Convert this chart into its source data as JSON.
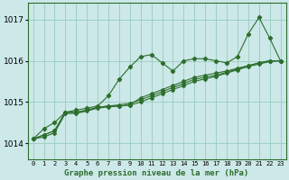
{
  "title": "Graphe pression niveau de la mer (hPa)",
  "background_color": "#cce8e8",
  "grid_color": "#99ccbb",
  "line_color": "#2d6e2d",
  "x_labels": [
    "0",
    "1",
    "2",
    "3",
    "4",
    "5",
    "6",
    "7",
    "8",
    "9",
    "10",
    "11",
    "12",
    "13",
    "14",
    "15",
    "16",
    "17",
    "18",
    "19",
    "20",
    "21",
    "22",
    "23"
  ],
  "ylim": [
    1013.6,
    1017.4
  ],
  "yticks": [
    1014,
    1015,
    1016,
    1017
  ],
  "series": [
    [
      1014.1,
      1014.35,
      1014.5,
      1014.75,
      1014.8,
      1014.85,
      1014.9,
      1015.15,
      1015.55,
      1015.85,
      1016.1,
      1016.15,
      1015.95,
      1015.75,
      1016.0,
      1016.05,
      1016.05,
      1016.0,
      1015.95,
      1016.1,
      1016.65,
      1017.05,
      1016.55,
      1016.0
    ],
    [
      1014.1,
      1014.2,
      1014.3,
      1014.75,
      1014.75,
      1014.8,
      1014.87,
      1014.9,
      1014.9,
      1014.93,
      1015.1,
      1015.2,
      1015.3,
      1015.4,
      1015.5,
      1015.6,
      1015.65,
      1015.7,
      1015.75,
      1015.82,
      1015.88,
      1015.95,
      1016.0,
      1016.0
    ],
    [
      1014.1,
      1014.2,
      1014.3,
      1014.75,
      1014.75,
      1014.8,
      1014.87,
      1014.9,
      1014.93,
      1014.97,
      1015.05,
      1015.15,
      1015.25,
      1015.35,
      1015.45,
      1015.55,
      1015.6,
      1015.65,
      1015.72,
      1015.8,
      1015.88,
      1015.95,
      1016.0,
      1016.0
    ],
    [
      1014.1,
      1014.15,
      1014.25,
      1014.72,
      1014.72,
      1014.78,
      1014.85,
      1014.88,
      1014.9,
      1014.92,
      1015.0,
      1015.1,
      1015.2,
      1015.3,
      1015.4,
      1015.5,
      1015.56,
      1015.62,
      1015.7,
      1015.78,
      1015.86,
      1015.92,
      1015.98,
      1016.0
    ]
  ],
  "figsize": [
    3.2,
    2.0
  ],
  "dpi": 100
}
